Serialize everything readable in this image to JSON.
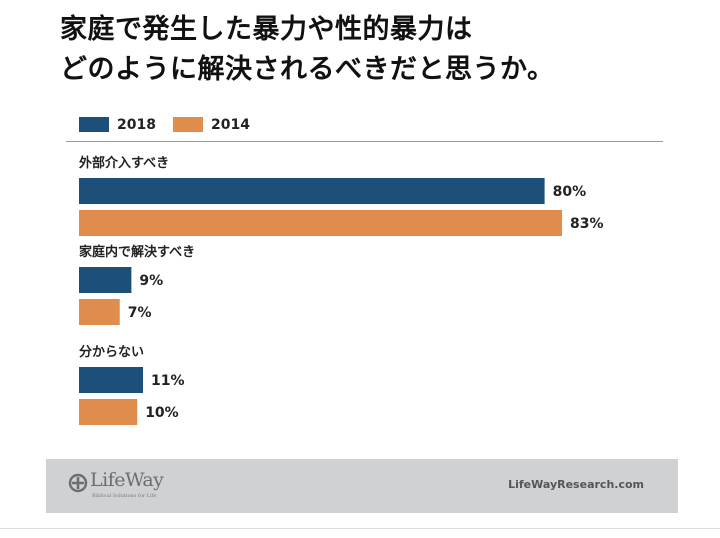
{
  "chart_data": {
    "type": "bar",
    "orientation": "horizontal",
    "title_lines": [
      "家庭で発生した暴力や性的暴力は",
      "どのように解決されるべきだと思うか。"
    ],
    "categories": [
      "外部介入すべき",
      "家庭内で解決すべき",
      "分からない"
    ],
    "series": [
      {
        "name": "2018",
        "color": "#1c4f79",
        "values": [
          80,
          9,
          11
        ]
      },
      {
        "name": "2014",
        "color": "#df8c4d",
        "values": [
          83,
          7,
          10
        ]
      }
    ],
    "value_suffix": "%",
    "xlim": [
      0,
      100
    ],
    "legend_position": "top-left",
    "grid": false
  },
  "footer": {
    "logo_text": "LifeWay",
    "logo_tagline": "Biblical Solutions for Life",
    "site": "LifeWayResearch.com"
  },
  "colors": {
    "series_2018": "#1c4f79",
    "series_2014": "#df8c4d",
    "footer_bg": "#cfd1d3"
  }
}
